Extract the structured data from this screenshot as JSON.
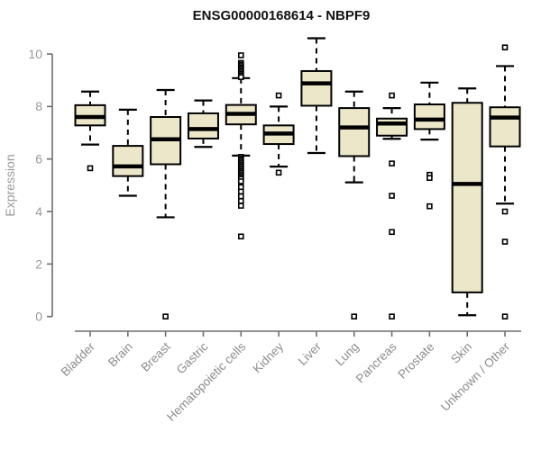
{
  "chart_data": {
    "type": "boxplot",
    "title": "ENSG00000168614 - NBPF9",
    "ylabel": "Expression",
    "xlabel": "",
    "ylim": [
      0,
      10.7
    ],
    "yticks": [
      0,
      2,
      4,
      6,
      8,
      10
    ],
    "grid": false,
    "legend": "none",
    "colors": {
      "box_fill": "#EDE7CA",
      "box_stroke": "#000000",
      "median": "#000000",
      "whisker": "#000000",
      "outlier_stroke": "#000000",
      "axis_line": "#6e6e6e",
      "tick_label": "#999999",
      "category_label": "#8c8c8c",
      "title": "#111111",
      "background": "#ffffff"
    },
    "categories": [
      "Bladder",
      "Brain",
      "Breast",
      "Gastric",
      "Hematopoietic cells",
      "Kidney",
      "Liver",
      "Lung",
      "Pancreas",
      "Prostate",
      "Skin",
      "Unknown / Other"
    ],
    "series": [
      {
        "category": "Bladder",
        "whisker_low": 6.55,
        "q1": 7.28,
        "median": 7.6,
        "q3": 8.05,
        "whisker_high": 8.57,
        "outliers": [
          5.65
        ]
      },
      {
        "category": "Brain",
        "whisker_low": 4.6,
        "q1": 5.35,
        "median": 5.72,
        "q3": 6.5,
        "whisker_high": 7.88,
        "outliers": []
      },
      {
        "category": "Breast",
        "whisker_low": 3.78,
        "q1": 5.8,
        "median": 6.75,
        "q3": 7.6,
        "whisker_high": 8.63,
        "outliers": [
          0.0
        ]
      },
      {
        "category": "Gastric",
        "whisker_low": 6.46,
        "q1": 6.78,
        "median": 7.14,
        "q3": 7.74,
        "whisker_high": 8.23,
        "outliers": []
      },
      {
        "category": "Hematopoietic cells",
        "whisker_low": 6.13,
        "q1": 7.32,
        "median": 7.72,
        "q3": 8.06,
        "whisker_high": 9.08,
        "outliers": [
          9.95,
          9.66,
          9.6,
          9.54,
          9.48,
          9.42,
          9.36,
          9.3,
          9.24,
          9.18,
          9.12,
          6.08,
          6.02,
          5.96,
          5.9,
          5.84,
          5.78,
          5.72,
          5.66,
          5.6,
          5.54,
          5.48,
          5.42,
          5.36,
          5.3,
          5.24,
          5.15,
          4.93,
          4.76,
          4.58,
          4.4,
          4.22,
          3.05
        ]
      },
      {
        "category": "Kidney",
        "whisker_low": 5.71,
        "q1": 6.57,
        "median": 6.97,
        "q3": 7.28,
        "whisker_high": 8.0,
        "outliers": [
          8.42,
          5.48
        ]
      },
      {
        "category": "Liver",
        "whisker_low": 6.23,
        "q1": 8.03,
        "median": 8.88,
        "q3": 9.35,
        "whisker_high": 10.6,
        "outliers": []
      },
      {
        "category": "Lung",
        "whisker_low": 5.11,
        "q1": 6.11,
        "median": 7.2,
        "q3": 7.94,
        "whisker_high": 8.57,
        "outliers": [
          0.0
        ]
      },
      {
        "category": "Pancreas",
        "whisker_low": 6.77,
        "q1": 6.89,
        "median": 7.35,
        "q3": 7.54,
        "whisker_high": 7.94,
        "outliers": [
          8.42,
          5.83,
          4.6,
          3.22,
          0.0
        ]
      },
      {
        "category": "Prostate",
        "whisker_low": 6.74,
        "q1": 7.14,
        "median": 7.5,
        "q3": 8.08,
        "whisker_high": 8.91,
        "outliers": [
          5.4,
          5.28,
          4.2
        ]
      },
      {
        "category": "Skin",
        "whisker_low": 0.05,
        "q1": 0.92,
        "median": 5.05,
        "q3": 8.14,
        "whisker_high": 8.69,
        "outliers": []
      },
      {
        "category": "Unknown / Other",
        "whisker_low": 4.3,
        "q1": 6.48,
        "median": 7.58,
        "q3": 7.97,
        "whisker_high": 9.54,
        "outliers": [
          10.25,
          4.0,
          2.85,
          0.0
        ]
      }
    ]
  }
}
